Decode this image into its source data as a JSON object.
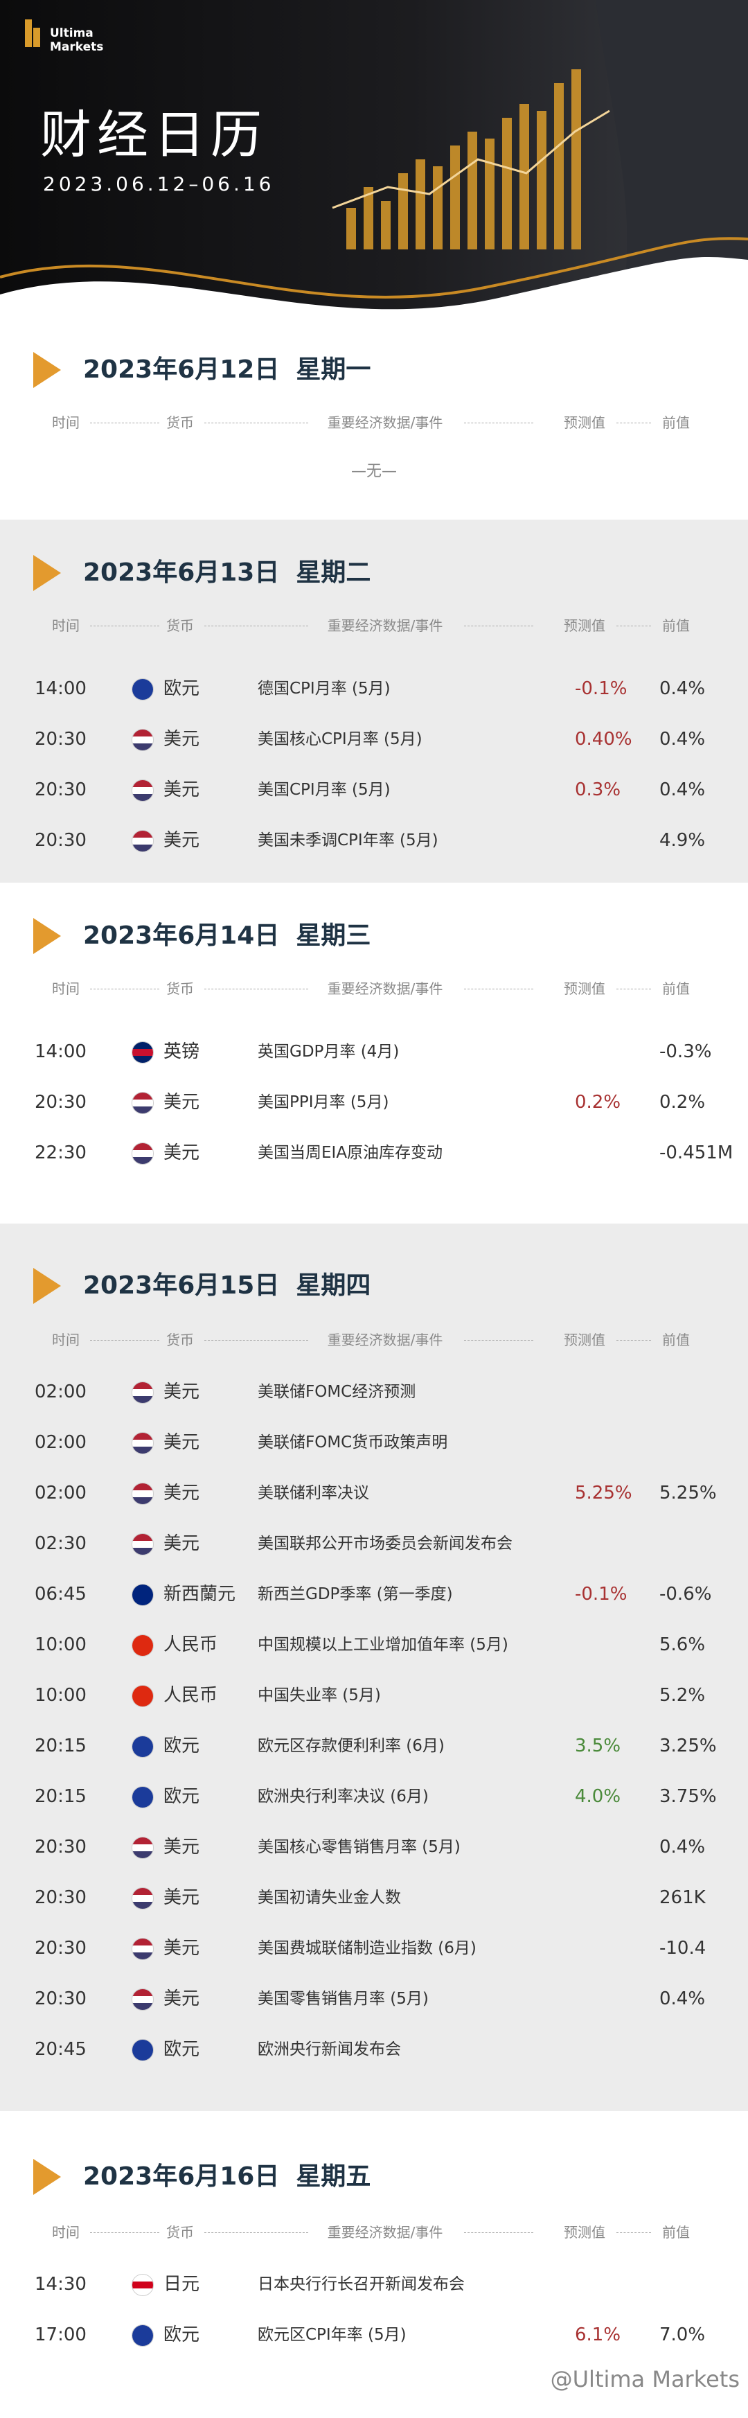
{
  "header": {
    "brand": [
      "Ultima",
      "Markets"
    ],
    "title": "财经日历",
    "date_range": "2023.06.12–06.16"
  },
  "columns": [
    "时间",
    "货币",
    "重要经济数据/事件",
    "预测值",
    "前值"
  ],
  "days": [
    {
      "date": "2023年6月12日",
      "weekday": "星期一",
      "empty": "—无—",
      "rows": []
    },
    {
      "date": "2023年6月13日",
      "weekday": "星期二",
      "rows": [
        {
          "time": "14:00",
          "flag": [
            "#1b3b9a"
          ],
          "currency": "欧元",
          "event": "德国CPI月率 (5月)",
          "forecast": "-0.1%",
          "forecast_color": "#a83232",
          "previous": "0.4%"
        },
        {
          "time": "20:30",
          "flag": [
            "#b22234",
            "#ffffff",
            "#3c3b6e"
          ],
          "currency": "美元",
          "event": "美国核心CPI月率 (5月)",
          "forecast": "0.40%",
          "forecast_color": "#a83232",
          "previous": "0.4%"
        },
        {
          "time": "20:30",
          "flag": [
            "#b22234",
            "#ffffff",
            "#3c3b6e"
          ],
          "currency": "美元",
          "event": "美国CPI月率 (5月)",
          "forecast": "0.3%",
          "forecast_color": "#a83232",
          "previous": "0.4%"
        },
        {
          "time": "20:30",
          "flag": [
            "#b22234",
            "#ffffff",
            "#3c3b6e"
          ],
          "currency": "美元",
          "event": "美国未季调CPI年率 (5月)",
          "previous": "4.9%"
        }
      ]
    },
    {
      "date": "2023年6月14日",
      "weekday": "星期三",
      "rows": [
        {
          "time": "14:00",
          "flag": [
            "#012169",
            "#c8102e",
            "#012169"
          ],
          "currency": "英镑",
          "event": "英国GDP月率 (4月)",
          "previous": "-0.3%"
        },
        {
          "time": "20:30",
          "flag": [
            "#b22234",
            "#ffffff",
            "#3c3b6e"
          ],
          "currency": "美元",
          "event": "美国PPI月率 (5月)",
          "forecast": "0.2%",
          "forecast_color": "#a83232",
          "previous": "0.2%"
        },
        {
          "time": "22:30",
          "flag": [
            "#b22234",
            "#ffffff",
            "#3c3b6e"
          ],
          "currency": "美元",
          "event": "美国当周EIA原油库存变动",
          "previous": "-0.451M"
        }
      ]
    },
    {
      "date": "2023年6月15日",
      "weekday": "星期四",
      "rows": [
        {
          "time": "02:00",
          "flag": [
            "#b22234",
            "#ffffff",
            "#3c3b6e"
          ],
          "currency": "美元",
          "event": "美联储FOMC经济预测"
        },
        {
          "time": "02:00",
          "flag": [
            "#b22234",
            "#ffffff",
            "#3c3b6e"
          ],
          "currency": "美元",
          "event": "美联储FOMC货币政策声明"
        },
        {
          "time": "02:00",
          "flag": [
            "#b22234",
            "#ffffff",
            "#3c3b6e"
          ],
          "currency": "美元",
          "event": "美联储利率决议",
          "forecast": "5.25%",
          "forecast_color": "#a83232",
          "previous": "5.25%"
        },
        {
          "time": "02:30",
          "flag": [
            "#b22234",
            "#ffffff",
            "#3c3b6e"
          ],
          "currency": "美元",
          "event": "美国联邦公开市场委员会新闻发布会"
        },
        {
          "time": "06:45",
          "flag": [
            "#00247d"
          ],
          "currency": "新西蘭元",
          "event": "新西兰GDP季率 (第一季度)",
          "forecast": "-0.1%",
          "forecast_color": "#a83232",
          "previous": "-0.6%"
        },
        {
          "time": "10:00",
          "flag": [
            "#de2910"
          ],
          "currency": "人民币",
          "event": "中国规模以上工业增加值年率 (5月)",
          "previous": "5.6%"
        },
        {
          "time": "10:00",
          "flag": [
            "#de2910"
          ],
          "currency": "人民币",
          "event": "中国失业率 (5月)",
          "previous": "5.2%"
        },
        {
          "time": "20:15",
          "flag": [
            "#1b3b9a"
          ],
          "currency": "欧元",
          "event": "欧元区存款便利利率 (6月)",
          "forecast": "3.5%",
          "forecast_color": "#4a8a3a",
          "previous": "3.25%"
        },
        {
          "time": "20:15",
          "flag": [
            "#1b3b9a"
          ],
          "currency": "欧元",
          "event": "欧洲央行利率决议 (6月)",
          "forecast": "4.0%",
          "forecast_color": "#4a8a3a",
          "previous": "3.75%"
        },
        {
          "time": "20:30",
          "flag": [
            "#b22234",
            "#ffffff",
            "#3c3b6e"
          ],
          "currency": "美元",
          "event": "美国核心零售销售月率 (5月)",
          "previous": "0.4%"
        },
        {
          "time": "20:30",
          "flag": [
            "#b22234",
            "#ffffff",
            "#3c3b6e"
          ],
          "currency": "美元",
          "event": "美国初请失业金人数",
          "previous": "261K"
        },
        {
          "time": "20:30",
          "flag": [
            "#b22234",
            "#ffffff",
            "#3c3b6e"
          ],
          "currency": "美元",
          "event": "美国费城联储制造业指数 (6月)",
          "previous": "-10.4"
        },
        {
          "time": "20:30",
          "flag": [
            "#b22234",
            "#ffffff",
            "#3c3b6e"
          ],
          "currency": "美元",
          "event": "美国零售销售月率 (5月)",
          "previous": "0.4%"
        },
        {
          "time": "20:45",
          "flag": [
            "#1b3b9a"
          ],
          "currency": "欧元",
          "event": "欧洲央行新闻发布会"
        }
      ]
    },
    {
      "date": "2023年6月16日",
      "weekday": "星期五",
      "rows": [
        {
          "time": "14:30",
          "flag": [
            "#ffffff",
            "#d0021b",
            "#ffffff"
          ],
          "currency": "日元",
          "event": "日本央行行长召开新闻发布会"
        },
        {
          "time": "17:00",
          "flag": [
            "#1b3b9a"
          ],
          "currency": "欧元",
          "event": "欧元区CPI年率 (5月)",
          "forecast": "6.1%",
          "forecast_color": "#a83232",
          "previous": "7.0%"
        }
      ]
    }
  ],
  "watermark": "@Ultima Markets"
}
